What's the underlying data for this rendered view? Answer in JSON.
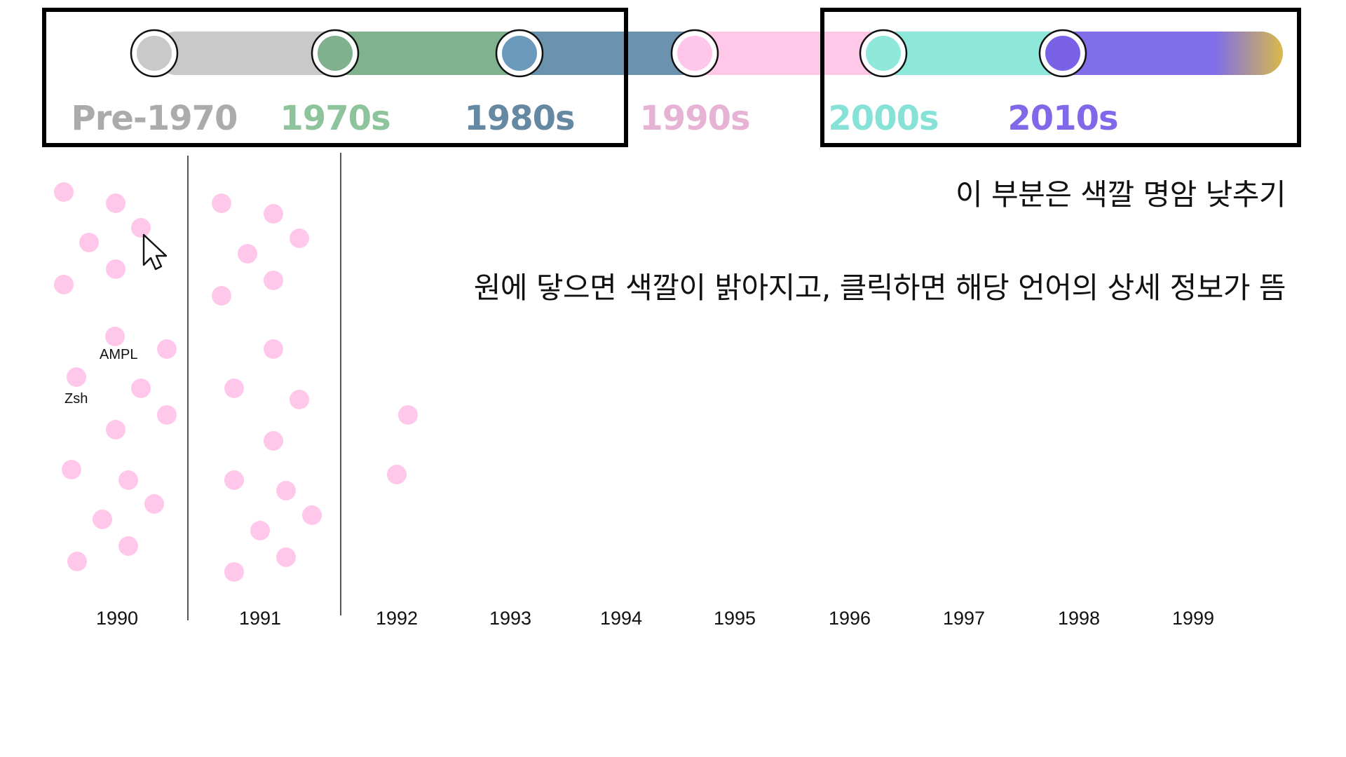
{
  "timeline": {
    "eras": [
      {
        "label": "Pre-1970",
        "color": "#c9c9c9",
        "text_color": "#ababab",
        "knob_color": "#c9c9c9"
      },
      {
        "label": "1970s",
        "color": "#80b28f",
        "text_color": "#8dc49b",
        "knob_color": "#7fb18e"
      },
      {
        "label": "1980s",
        "color": "#6b93ad",
        "text_color": "#6689a3",
        "knob_color": "#6b99bc"
      },
      {
        "label": "1990s",
        "color": "#ffc8e8",
        "text_color": "#e7b3d4",
        "knob_color": "#ffc6eb"
      },
      {
        "label": "2000s",
        "color": "#8ee8d9",
        "text_color": "#86e2d6",
        "knob_color": "#8fe8d9"
      },
      {
        "label": "2010s",
        "color": "#7f6ee8",
        "text_color": "#8068e8",
        "knob_color": "#7a62e6"
      }
    ],
    "track_end_color": "#d9b94a"
  },
  "annotations": {
    "dim_note": "이 부분은 색깔 명암 낮추기",
    "hover_note": "원에 닿으면 색깔이 밝아지고, 클릭하면 해당 언어의 상세 정보가 뜸"
  },
  "years": [
    "1990",
    "1991",
    "1992",
    "1993",
    "1994",
    "1995",
    "1996",
    "1997",
    "1998",
    "1999"
  ],
  "languages": [
    {
      "name": "Zsh",
      "year": "1990"
    },
    {
      "name": "AMPL",
      "year": "1990"
    }
  ],
  "colors": {
    "dot": "#ffc8ea",
    "frame": "#000000",
    "divider": "#555555"
  },
  "cursor": "arrow-cursor-icon"
}
